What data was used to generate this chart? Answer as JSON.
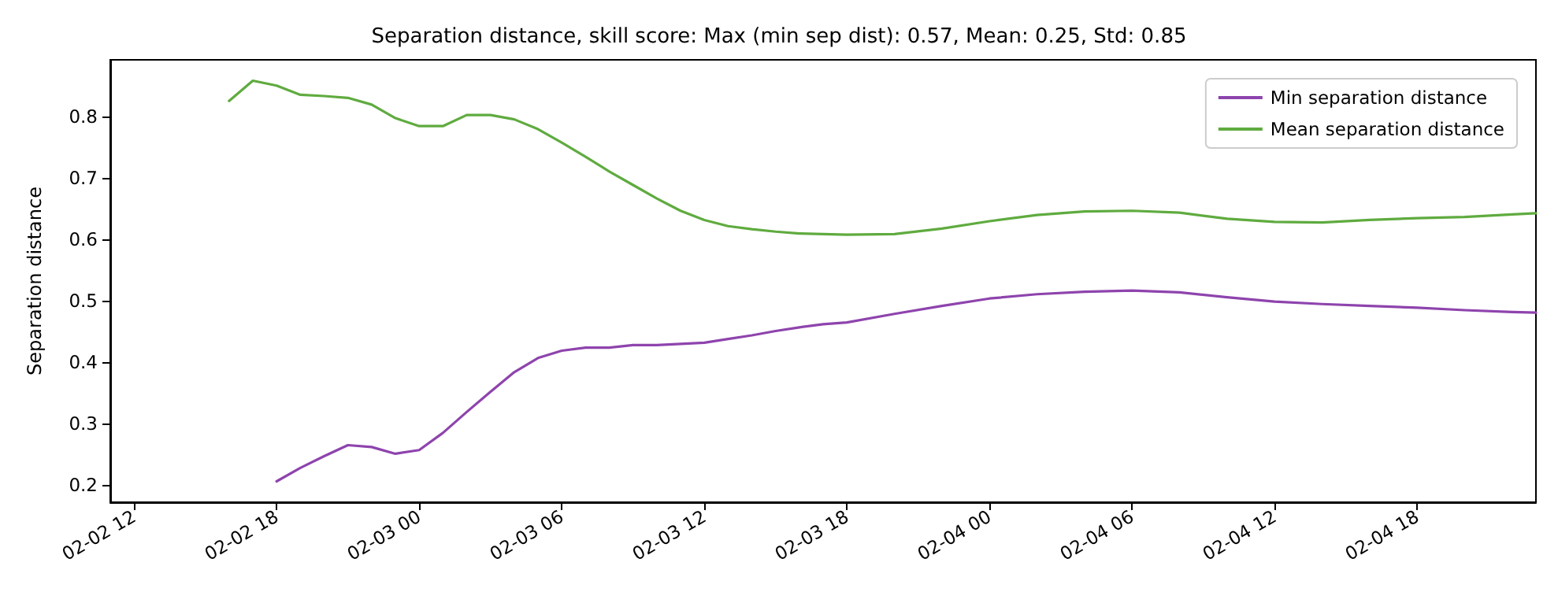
{
  "chart_data": {
    "type": "line",
    "title": "Separation distance, skill score: Max (min sep dist): 0.57, Mean: 0.25, Std: 0.85",
    "ylabel": "Separation distance",
    "series": [
      {
        "name": "Min separation distance",
        "color": "#8e44ad",
        "x": [
          "--02-02T18:00",
          "--02-02T19:00",
          "--02-02T20:00",
          "--02-02T21:00",
          "--02-02T22:00",
          "--02-02T23:00",
          "--02-03T00:00",
          "--02-03T01:00",
          "--02-03T02:00",
          "--02-03T03:00",
          "--02-03T04:00",
          "--02-03T05:00",
          "--02-03T06:00",
          "--02-03T07:00",
          "--02-03T08:00",
          "--02-03T09:00",
          "--02-03T10:00",
          "--02-03T11:00",
          "--02-03T12:00",
          "--02-03T13:00",
          "--02-03T14:00",
          "--02-03T15:00",
          "--02-03T16:00",
          "--02-03T17:00",
          "--02-03T18:00",
          "--02-03T20:00",
          "--02-03T22:00",
          "--02-04T00:00",
          "--02-04T02:00",
          "--02-04T04:00",
          "--02-04T06:00",
          "--02-04T08:00",
          "--02-04T10:00",
          "--02-04T12:00",
          "--02-04T14:00",
          "--02-04T16:00",
          "--02-04T18:00",
          "--02-04T20:00",
          "--02-04T22:00",
          "--02-04T23:00"
        ],
        "values": [
          0.206,
          0.228,
          0.247,
          0.265,
          0.262,
          0.251,
          0.257,
          0.285,
          0.319,
          0.352,
          0.384,
          0.407,
          0.419,
          0.424,
          0.424,
          0.428,
          0.428,
          0.43,
          0.432,
          0.438,
          0.444,
          0.451,
          0.457,
          0.462,
          0.465,
          0.479,
          0.492,
          0.504,
          0.511,
          0.515,
          0.517,
          0.514,
          0.506,
          0.499,
          0.495,
          0.492,
          0.489,
          0.485,
          0.482,
          0.481
        ]
      },
      {
        "name": "Mean separation distance",
        "color": "#5fab3f",
        "x": [
          "--02-02T16:00",
          "--02-02T17:00",
          "--02-02T18:00",
          "--02-02T19:00",
          "--02-02T20:00",
          "--02-02T21:00",
          "--02-02T22:00",
          "--02-02T23:00",
          "--02-03T00:00",
          "--02-03T01:00",
          "--02-03T02:00",
          "--02-03T03:00",
          "--02-03T04:00",
          "--02-03T05:00",
          "--02-03T06:00",
          "--02-03T07:00",
          "--02-03T08:00",
          "--02-03T09:00",
          "--02-03T10:00",
          "--02-03T11:00",
          "--02-03T12:00",
          "--02-03T13:00",
          "--02-03T14:00",
          "--02-03T15:00",
          "--02-03T16:00",
          "--02-03T17:00",
          "--02-03T18:00",
          "--02-03T20:00",
          "--02-03T22:00",
          "--02-04T00:00",
          "--02-04T02:00",
          "--02-04T04:00",
          "--02-04T06:00",
          "--02-04T08:00",
          "--02-04T10:00",
          "--02-04T12:00",
          "--02-04T14:00",
          "--02-04T16:00",
          "--02-04T18:00",
          "--02-04T20:00",
          "--02-04T22:00",
          "--02-04T23:00"
        ],
        "values": [
          0.826,
          0.859,
          0.851,
          0.836,
          0.834,
          0.831,
          0.82,
          0.798,
          0.785,
          0.785,
          0.803,
          0.803,
          0.796,
          0.78,
          0.758,
          0.735,
          0.711,
          0.689,
          0.667,
          0.647,
          0.632,
          0.622,
          0.617,
          0.613,
          0.61,
          0.609,
          0.608,
          0.609,
          0.618,
          0.63,
          0.64,
          0.646,
          0.647,
          0.644,
          0.634,
          0.629,
          0.628,
          0.632,
          0.635,
          0.637,
          0.641,
          0.643
        ]
      }
    ],
    "xlim": [
      "--02-02T11:00",
      "--02-04T23:00"
    ],
    "ylim": [
      0.172,
      0.893
    ],
    "xticks": [
      {
        "value": "--02-02T12:00",
        "label": "02-02 12"
      },
      {
        "value": "--02-02T18:00",
        "label": "02-02 18"
      },
      {
        "value": "--02-03T00:00",
        "label": "02-03 00"
      },
      {
        "value": "--02-03T06:00",
        "label": "02-03 06"
      },
      {
        "value": "--02-03T12:00",
        "label": "02-03 12"
      },
      {
        "value": "--02-03T18:00",
        "label": "02-03 18"
      },
      {
        "value": "--02-04T00:00",
        "label": "02-04 00"
      },
      {
        "value": "--02-04T06:00",
        "label": "02-04 06"
      },
      {
        "value": "--02-04T12:00",
        "label": "02-04 12"
      },
      {
        "value": "--02-04T18:00",
        "label": "02-04 18"
      }
    ],
    "yticks": [
      0.2,
      0.3,
      0.4,
      0.5,
      0.6,
      0.7,
      0.8
    ],
    "legend": "top right",
    "marker": "none",
    "line_style": "solid"
  }
}
